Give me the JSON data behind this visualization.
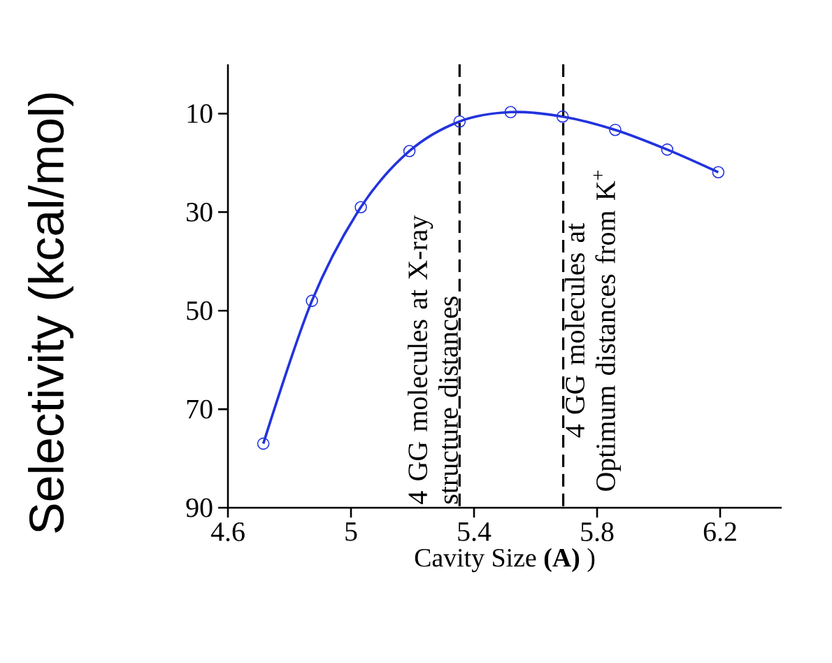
{
  "chart_data": {
    "type": "line",
    "xlabel": "Cavity Size **(A)** )",
    "ylabel": "Selectivity (kcal/mol)",
    "x": [
      4.715,
      4.873,
      5.032,
      5.19,
      5.353,
      5.519,
      5.688,
      5.859,
      6.028,
      6.194
    ],
    "series": [
      {
        "color": "#2233dd",
        "values": [
          77,
          48,
          29,
          17.6,
          11.6,
          9.7,
          10.6,
          13.3,
          17.3,
          21.9
        ]
      }
    ],
    "xlim": [
      4.6,
      6.4
    ],
    "xticks": [
      4.6,
      5,
      5.4,
      5.8,
      6.2
    ],
    "ylim": [
      90,
      0
    ],
    "yticks": [
      10,
      30,
      50,
      70,
      90
    ],
    "marker": "circle",
    "ref_lines": [
      {
        "axis": "x",
        "value": 5.353,
        "label": "4 GG molecules at X-ray structure distances",
        "color": "#000000",
        "line_style": "dashed"
      },
      {
        "axis": "x",
        "value": 5.69,
        "label": "4 GG molecules at Optimum distances from K$^{+}$",
        "color": "#000000",
        "line_style": "dashed"
      }
    ]
  }
}
